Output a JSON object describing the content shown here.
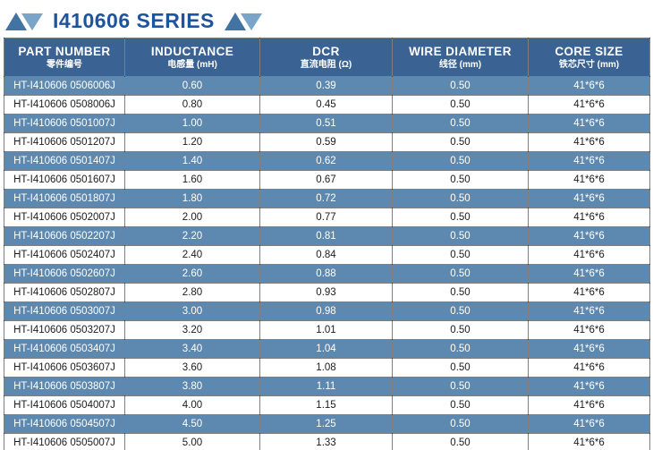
{
  "title": {
    "text": "I410606 SERIES"
  },
  "colors": {
    "header_bg": "#3a6394",
    "row_alt_bg": "#5d88af",
    "row_bg": "#ffffff",
    "title_color": "#1e549e",
    "triangle_dark": "#4273a3",
    "triangle_light": "#7ba4c9"
  },
  "table": {
    "columns": [
      {
        "key": "part-number",
        "label": "PART NUMBER",
        "sub": "零件编号"
      },
      {
        "key": "inductance",
        "label": "INDUCTANCE",
        "sub": "电感量 (mH)"
      },
      {
        "key": "dcr",
        "label": "DCR",
        "sub": "直流电阻 (Ω)"
      },
      {
        "key": "wire-diameter",
        "label": "WIRE DIAMETER",
        "sub": "线径 (mm)"
      },
      {
        "key": "core-size",
        "label": "CORE SIZE",
        "sub": "铁芯尺寸 (mm)"
      }
    ],
    "rows": [
      [
        "HT-I410606 0506006J",
        "0.60",
        "0.39",
        "0.50",
        "41*6*6"
      ],
      [
        "HT-I410606 0508006J",
        "0.80",
        "0.45",
        "0.50",
        "41*6*6"
      ],
      [
        "HT-I410606 0501007J",
        "1.00",
        "0.51",
        "0.50",
        "41*6*6"
      ],
      [
        "HT-I410606 0501207J",
        "1.20",
        "0.59",
        "0.50",
        "41*6*6"
      ],
      [
        "HT-I410606 0501407J",
        "1.40",
        "0.62",
        "0.50",
        "41*6*6"
      ],
      [
        "HT-I410606 0501607J",
        "1.60",
        "0.67",
        "0.50",
        "41*6*6"
      ],
      [
        "HT-I410606 0501807J",
        "1.80",
        "0.72",
        "0.50",
        "41*6*6"
      ],
      [
        "HT-I410606 0502007J",
        "2.00",
        "0.77",
        "0.50",
        "41*6*6"
      ],
      [
        "HT-I410606 0502207J",
        "2.20",
        "0.81",
        "0.50",
        "41*6*6"
      ],
      [
        "HT-I410606 0502407J",
        "2.40",
        "0.84",
        "0.50",
        "41*6*6"
      ],
      [
        "HT-I410606 0502607J",
        "2.60",
        "0.88",
        "0.50",
        "41*6*6"
      ],
      [
        "HT-I410606 0502807J",
        "2.80",
        "0.93",
        "0.50",
        "41*6*6"
      ],
      [
        "HT-I410606 0503007J",
        "3.00",
        "0.98",
        "0.50",
        "41*6*6"
      ],
      [
        "HT-I410606 0503207J",
        "3.20",
        "1.01",
        "0.50",
        "41*6*6"
      ],
      [
        "HT-I410606 0503407J",
        "3.40",
        "1.04",
        "0.50",
        "41*6*6"
      ],
      [
        "HT-I410606 0503607J",
        "3.60",
        "1.08",
        "0.50",
        "41*6*6"
      ],
      [
        "HT-I410606 0503807J",
        "3.80",
        "1.11",
        "0.50",
        "41*6*6"
      ],
      [
        "HT-I410606 0504007J",
        "4.00",
        "1.15",
        "0.50",
        "41*6*6"
      ],
      [
        "HT-I410606 0504507J",
        "4.50",
        "1.25",
        "0.50",
        "41*6*6"
      ],
      [
        "HT-I410606 0505007J",
        "5.00",
        "1.33",
        "0.50",
        "41*6*6"
      ]
    ]
  }
}
